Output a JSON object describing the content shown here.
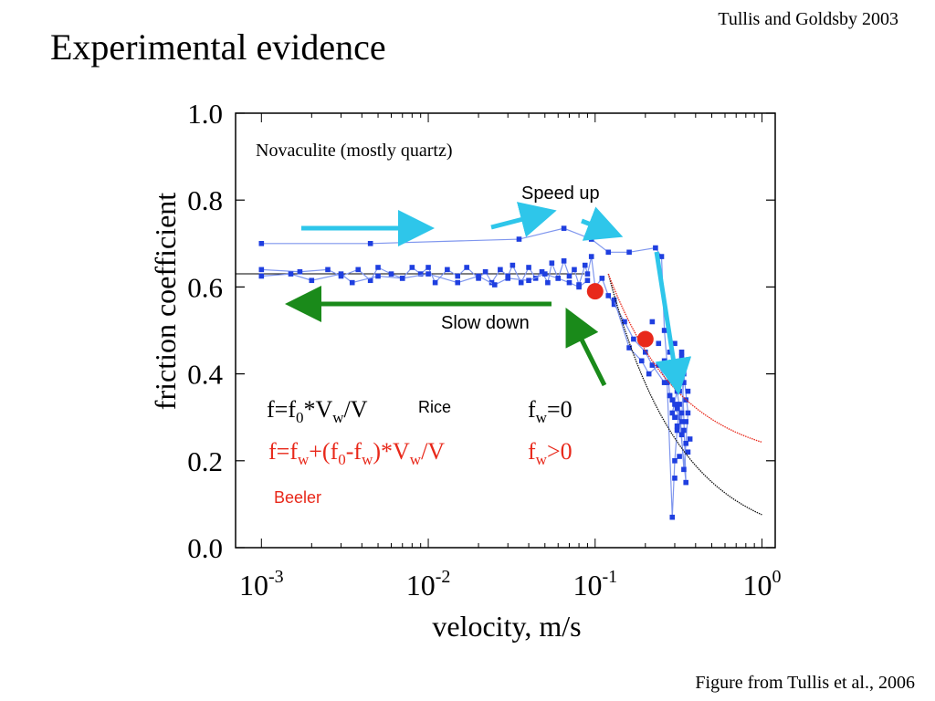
{
  "slide": {
    "title": "Experimental evidence",
    "citation_top": "Tullis and Goldsby 2003",
    "citation_bottom": "Figure from Tullis et al., 2006"
  },
  "chart_data": {
    "type": "scatter",
    "xscale": "log",
    "xlabel": "velocity, m/s",
    "ylabel": "friction coefficient",
    "xlim": [
      0.0007,
      1.2
    ],
    "ylim": [
      0.0,
      1.0
    ],
    "x_ticks": [
      {
        "value": 0.001,
        "base": "10",
        "exp": "-3"
      },
      {
        "value": 0.01,
        "base": "10",
        "exp": "-2"
      },
      {
        "value": 0.1,
        "base": "10",
        "exp": "-1"
      },
      {
        "value": 1,
        "base": "10",
        "exp": "0"
      }
    ],
    "y_ticks": [
      {
        "value": 0.0,
        "label": "0.0"
      },
      {
        "value": 0.2,
        "label": "0.2"
      },
      {
        "value": 0.4,
        "label": "0.4"
      },
      {
        "value": 0.6,
        "label": "0.6"
      },
      {
        "value": 0.8,
        "label": "0.8"
      },
      {
        "value": 1.0,
        "label": "1.0"
      }
    ],
    "annotation": "Novaculite (mostly quartz)",
    "arrow_labels": {
      "speed_up": "Speed up",
      "slow_down": "Slow down"
    },
    "model_labels": {
      "rice": "Rice",
      "beeler": "Beeler",
      "rice_fw": "fw=0",
      "beeler_fw": "fw>0"
    },
    "colors": {
      "data": "#1f3fe0",
      "data_line": "#7f96ee",
      "rice": "#111111",
      "beeler": "#e8281a",
      "speed_up": "#2ec6ea",
      "slow_down": "#1a8a1a"
    },
    "series": [
      {
        "line": true,
        "points": [
          [
            0.001,
            0.7
          ],
          [
            0.0045,
            0.7
          ],
          [
            0.035,
            0.71
          ],
          [
            0.065,
            0.735
          ],
          [
            0.095,
            0.71
          ],
          [
            0.12,
            0.68
          ],
          [
            0.16,
            0.68
          ],
          [
            0.23,
            0.69
          ],
          [
            0.25,
            0.67
          ],
          [
            0.26,
            0.5
          ],
          [
            0.28,
            0.35
          ],
          [
            0.32,
            0.3
          ],
          [
            0.35,
            0.15
          ],
          [
            0.33,
            0.45
          ]
        ]
      },
      {
        "line": true,
        "points": [
          [
            0.001,
            0.64
          ],
          [
            0.0017,
            0.635
          ],
          [
            0.0025,
            0.64
          ],
          [
            0.003,
            0.625
          ],
          [
            0.0038,
            0.64
          ],
          [
            0.0045,
            0.615
          ],
          [
            0.005,
            0.645
          ],
          [
            0.006,
            0.63
          ],
          [
            0.007,
            0.62
          ],
          [
            0.008,
            0.645
          ],
          [
            0.009,
            0.63
          ],
          [
            0.01,
            0.645
          ],
          [
            0.011,
            0.61
          ],
          [
            0.013,
            0.64
          ],
          [
            0.015,
            0.625
          ],
          [
            0.017,
            0.645
          ],
          [
            0.02,
            0.62
          ],
          [
            0.022,
            0.635
          ],
          [
            0.024,
            0.61
          ],
          [
            0.027,
            0.64
          ],
          [
            0.03,
            0.625
          ],
          [
            0.032,
            0.65
          ],
          [
            0.036,
            0.61
          ],
          [
            0.04,
            0.645
          ],
          [
            0.044,
            0.62
          ],
          [
            0.048,
            0.635
          ],
          [
            0.052,
            0.61
          ],
          [
            0.055,
            0.655
          ],
          [
            0.06,
            0.62
          ],
          [
            0.065,
            0.66
          ],
          [
            0.07,
            0.625
          ],
          [
            0.075,
            0.64
          ],
          [
            0.08,
            0.605
          ],
          [
            0.087,
            0.65
          ],
          [
            0.09,
            0.63
          ],
          [
            0.095,
            0.67
          ],
          [
            0.1,
            0.6
          ],
          [
            0.11,
            0.62
          ],
          [
            0.12,
            0.58
          ],
          [
            0.13,
            0.56
          ],
          [
            0.15,
            0.52
          ],
          [
            0.17,
            0.48
          ],
          [
            0.2,
            0.45
          ],
          [
            0.22,
            0.42
          ],
          [
            0.26,
            0.38
          ],
          [
            0.3,
            0.4
          ]
        ]
      },
      {
        "line": true,
        "points": [
          [
            0.001,
            0.625
          ],
          [
            0.0015,
            0.63
          ],
          [
            0.002,
            0.615
          ],
          [
            0.003,
            0.63
          ],
          [
            0.0035,
            0.61
          ],
          [
            0.005,
            0.625
          ],
          [
            0.007,
            0.62
          ],
          [
            0.01,
            0.63
          ],
          [
            0.015,
            0.61
          ],
          [
            0.02,
            0.625
          ],
          [
            0.025,
            0.605
          ],
          [
            0.03,
            0.62
          ],
          [
            0.04,
            0.615
          ],
          [
            0.05,
            0.63
          ],
          [
            0.06,
            0.62
          ],
          [
            0.07,
            0.61
          ],
          [
            0.08,
            0.6
          ],
          [
            0.09,
            0.615
          ]
        ]
      },
      {
        "line": true,
        "points": [
          [
            0.13,
            0.57
          ],
          [
            0.16,
            0.46
          ],
          [
            0.19,
            0.43
          ],
          [
            0.21,
            0.4
          ],
          [
            0.24,
            0.42
          ],
          [
            0.27,
            0.38
          ],
          [
            0.29,
            0.07
          ],
          [
            0.3,
            0.2
          ],
          [
            0.31,
            0.27
          ],
          [
            0.32,
            0.33
          ],
          [
            0.34,
            0.18
          ],
          [
            0.35,
            0.24
          ],
          [
            0.36,
            0.31
          ],
          [
            0.34,
            0.4
          ],
          [
            0.33,
            0.29
          ],
          [
            0.31,
            0.36
          ],
          [
            0.29,
            0.31
          ]
        ]
      },
      {
        "line": false,
        "points": [
          [
            0.28,
            0.35
          ],
          [
            0.3,
            0.33
          ],
          [
            0.31,
            0.28
          ],
          [
            0.32,
            0.36
          ],
          [
            0.33,
            0.31
          ],
          [
            0.34,
            0.27
          ],
          [
            0.35,
            0.34
          ],
          [
            0.36,
            0.36
          ],
          [
            0.29,
            0.34
          ],
          [
            0.3,
            0.3
          ],
          [
            0.31,
            0.32
          ],
          [
            0.33,
            0.26
          ],
          [
            0.34,
            0.38
          ],
          [
            0.35,
            0.29
          ],
          [
            0.36,
            0.22
          ],
          [
            0.37,
            0.25
          ],
          [
            0.32,
            0.21
          ],
          [
            0.3,
            0.16
          ],
          [
            0.33,
            0.44
          ],
          [
            0.3,
            0.47
          ],
          [
            0.28,
            0.45
          ],
          [
            0.26,
            0.43
          ],
          [
            0.24,
            0.47
          ],
          [
            0.22,
            0.52
          ]
        ]
      }
    ],
    "rice_curve": {
      "mu0": 0.63,
      "vw": 0.12
    },
    "beeler_curve": {
      "mu0": 0.63,
      "fw": 0.19,
      "vw": 0.12
    },
    "highlight_points": [
      [
        0.1,
        0.59
      ],
      [
        0.2,
        0.48
      ]
    ]
  }
}
